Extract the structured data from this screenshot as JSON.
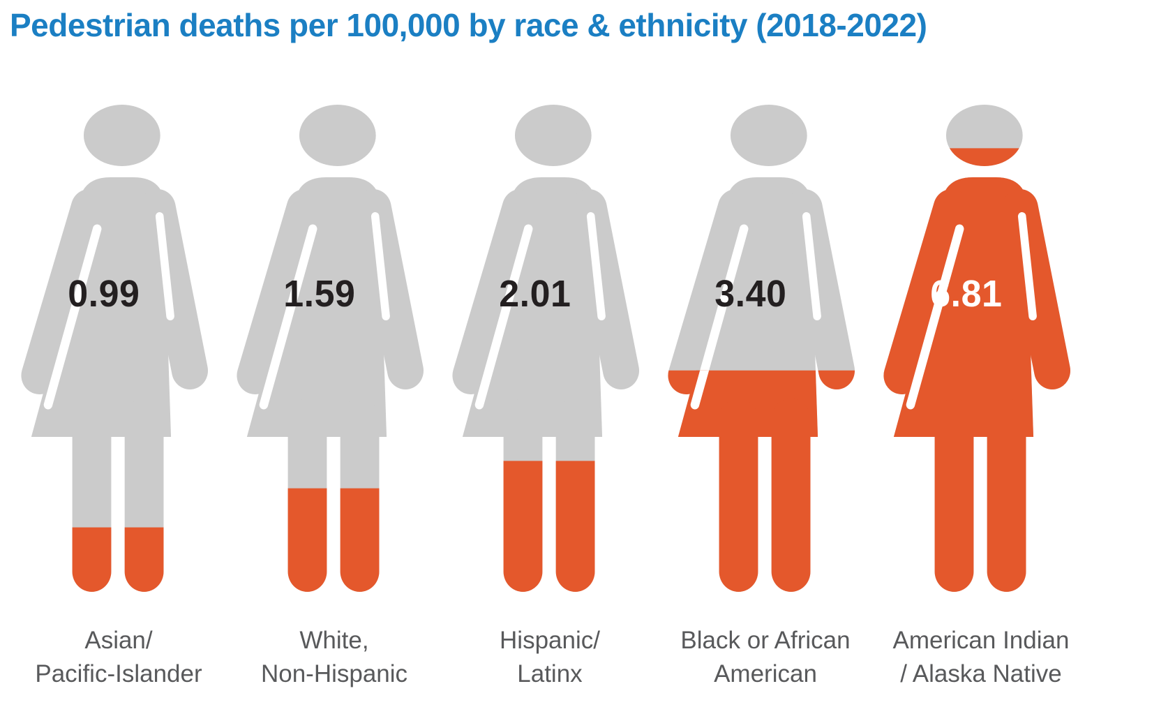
{
  "title": {
    "text": "Pedestrian deaths per 100,000 by race & ethnicity (2018-2022)",
    "color": "#1b7fc3"
  },
  "chart_data": {
    "type": "pictogram",
    "title": "Pedestrian deaths per 100,000 by race & ethnicity (2018-2022)",
    "unit": "pedestrian deaths per 100,000 population",
    "period": "2018-2022",
    "scale_max_per_figure": 7.5,
    "categories": [
      "Asian/ Pacific-Islander",
      "White, Non-Hispanic",
      "Hispanic/ Latinx",
      "Black or African American",
      "American Indian / Alaska Native"
    ],
    "values": [
      0.99,
      1.59,
      2.01,
      3.4,
      6.81
    ],
    "colors": {
      "icon_base": "#cbcbcb",
      "icon_fill": "#e4582c",
      "title": "#1b7fc3",
      "label_text": "#58595b",
      "value_text_dark": "#231f20",
      "value_text_light": "#ffffff"
    },
    "legend": "none",
    "grid": false,
    "figures": [
      {
        "value": 0.99,
        "value_text": "0.99",
        "value_text_color": "#231f20",
        "label_line1": "Asian/",
        "label_line2": "Pacific-Islander"
      },
      {
        "value": 1.59,
        "value_text": "1.59",
        "value_text_color": "#231f20",
        "label_line1": "White,",
        "label_line2": "Non-Hispanic"
      },
      {
        "value": 2.01,
        "value_text": "2.01",
        "value_text_color": "#231f20",
        "label_line1": "Hispanic/",
        "label_line2": "Latinx"
      },
      {
        "value": 3.4,
        "value_text": "3.40",
        "value_text_color": "#231f20",
        "label_line1": "Black or African",
        "label_line2": "American"
      },
      {
        "value": 6.81,
        "value_text": "6.81",
        "value_text_color": "#ffffff",
        "label_line1": "American Indian",
        "label_line2": "/ Alaska Native"
      }
    ]
  }
}
